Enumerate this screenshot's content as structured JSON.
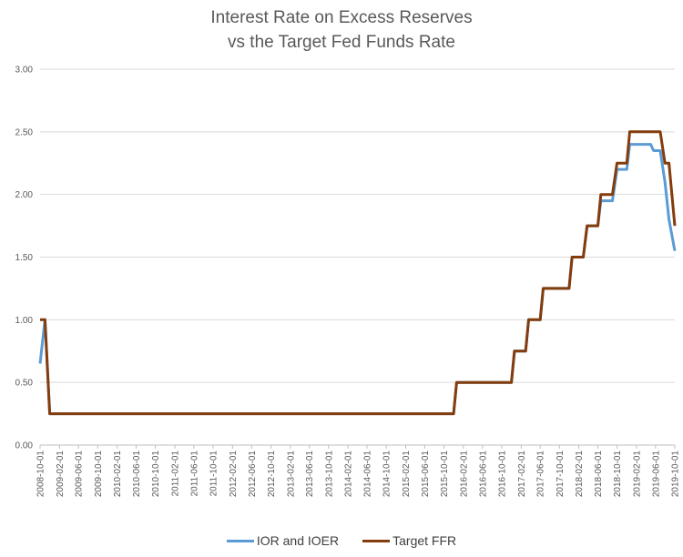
{
  "chart_data": {
    "type": "line",
    "title_lines": [
      "Interest Rate on Excess Reserves",
      "vs the Target Fed Funds Rate"
    ],
    "xlabel": "",
    "ylabel": "",
    "ylim": [
      0,
      3
    ],
    "yticks": [
      "0.00",
      "0.50",
      "1.00",
      "1.50",
      "2.00",
      "2.50",
      "3.00"
    ],
    "grid": true,
    "legend": "bottom",
    "x_range": [
      "2008-10-01",
      "2019-10-01"
    ],
    "xticks": [
      "2008-10-01",
      "2009-02-01",
      "2009-06-01",
      "2009-10-01",
      "2010-02-01",
      "2010-06-01",
      "2010-10-01",
      "2011-02-01",
      "2011-06-01",
      "2011-10-01",
      "2012-02-01",
      "2012-06-01",
      "2012-10-01",
      "2013-02-01",
      "2013-06-01",
      "2013-10-01",
      "2014-02-01",
      "2014-06-01",
      "2014-10-01",
      "2015-02-01",
      "2015-06-01",
      "2015-10-01",
      "2016-02-01",
      "2016-06-01",
      "2016-10-01",
      "2017-02-01",
      "2017-06-01",
      "2017-10-01",
      "2018-02-01",
      "2018-06-01",
      "2018-10-01",
      "2019-02-01",
      "2019-06-01",
      "2019-10-01"
    ],
    "series": [
      {
        "name": "IOR and IOER",
        "color": "#5b9bd5",
        "points": [
          [
            "2008-10-01",
            0.65
          ],
          [
            "2008-11-01",
            1.0
          ],
          [
            "2008-12-01",
            0.25
          ],
          [
            "2015-12-01",
            0.25
          ],
          [
            "2015-12-20",
            0.5
          ],
          [
            "2016-12-01",
            0.5
          ],
          [
            "2016-12-20",
            0.75
          ],
          [
            "2017-03-01",
            0.75
          ],
          [
            "2017-03-20",
            1.0
          ],
          [
            "2017-06-01",
            1.0
          ],
          [
            "2017-06-20",
            1.25
          ],
          [
            "2017-12-01",
            1.25
          ],
          [
            "2017-12-20",
            1.5
          ],
          [
            "2018-03-01",
            1.5
          ],
          [
            "2018-03-25",
            1.75
          ],
          [
            "2018-06-01",
            1.75
          ],
          [
            "2018-06-20",
            1.95
          ],
          [
            "2018-09-01",
            1.95
          ],
          [
            "2018-09-30",
            2.2
          ],
          [
            "2018-12-01",
            2.2
          ],
          [
            "2018-12-20",
            2.4
          ],
          [
            "2019-05-01",
            2.4
          ],
          [
            "2019-05-20",
            2.35
          ],
          [
            "2019-07-01",
            2.35
          ],
          [
            "2019-07-31",
            2.1
          ],
          [
            "2019-08-25",
            1.8
          ],
          [
            "2019-10-01",
            1.55
          ]
        ]
      },
      {
        "name": "Target FFR",
        "color": "#843c0c",
        "points": [
          [
            "2008-10-01",
            1.0
          ],
          [
            "2008-11-01",
            1.0
          ],
          [
            "2008-12-01",
            0.25
          ],
          [
            "2015-12-01",
            0.25
          ],
          [
            "2015-12-20",
            0.5
          ],
          [
            "2016-12-01",
            0.5
          ],
          [
            "2016-12-20",
            0.75
          ],
          [
            "2017-03-01",
            0.75
          ],
          [
            "2017-03-20",
            1.0
          ],
          [
            "2017-06-01",
            1.0
          ],
          [
            "2017-06-20",
            1.25
          ],
          [
            "2017-12-01",
            1.25
          ],
          [
            "2017-12-20",
            1.5
          ],
          [
            "2018-03-01",
            1.5
          ],
          [
            "2018-03-25",
            1.75
          ],
          [
            "2018-06-01",
            1.75
          ],
          [
            "2018-06-20",
            2.0
          ],
          [
            "2018-09-01",
            2.0
          ],
          [
            "2018-09-30",
            2.25
          ],
          [
            "2018-12-01",
            2.25
          ],
          [
            "2018-12-20",
            2.5
          ],
          [
            "2019-07-01",
            2.5
          ],
          [
            "2019-07-31",
            2.25
          ],
          [
            "2019-08-25",
            2.25
          ],
          [
            "2019-10-01",
            1.75
          ]
        ]
      }
    ]
  }
}
